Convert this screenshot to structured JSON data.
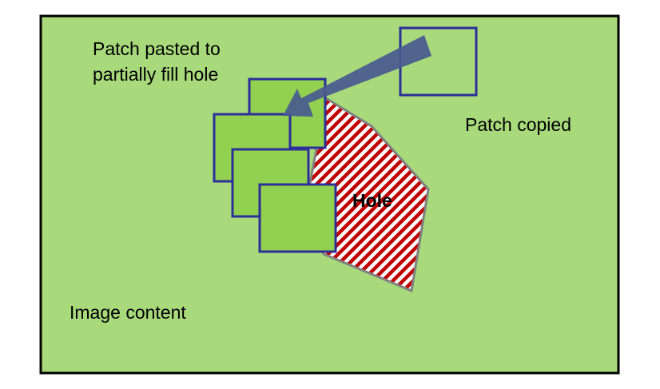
{
  "labels": {
    "patch_pasted_line1": "Patch pasted to",
    "patch_pasted_line2": "partially fill hole",
    "patch_copied": "Patch copied",
    "hole": "Hole",
    "image_content": "Image content"
  },
  "colors": {
    "canvas_fill": "#a8d97b",
    "canvas_border": "#000000",
    "patch_fill": "#92d050",
    "patch_border": "#2e2e99",
    "arrow_fill": "#4a5a8f",
    "hatch_red": "#c00000",
    "hole_border": "#808080"
  }
}
